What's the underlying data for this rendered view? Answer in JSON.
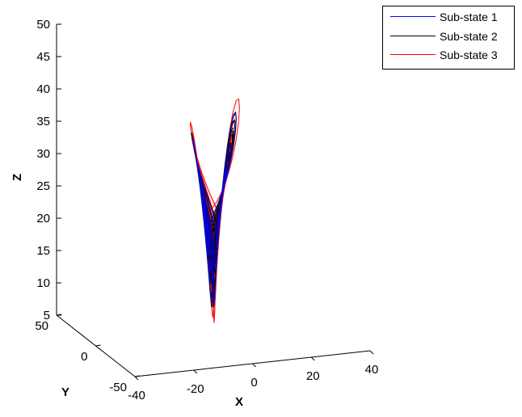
{
  "chart_data": {
    "type": "line",
    "projection": "3d",
    "title": "",
    "xlabel": "X",
    "ylabel": "Y",
    "zlabel": "Z",
    "xlim": [
      -40,
      40
    ],
    "ylim": [
      -50,
      50
    ],
    "zlim": [
      5,
      50
    ],
    "xticks": [
      "-40",
      "-20",
      "0",
      "20",
      "40"
    ],
    "yticks": [
      "-50",
      "0",
      "50"
    ],
    "zticks": [
      "5",
      "10",
      "15",
      "20",
      "25",
      "30",
      "35",
      "40",
      "45",
      "50"
    ],
    "grid": false,
    "legend_position": "top-right",
    "series": [
      {
        "name": "Sub-state 1",
        "color": "#0000ff"
      },
      {
        "name": "Sub-state 2",
        "color": "#000000"
      },
      {
        "name": "Sub-state 3",
        "color": "#ff0000"
      }
    ]
  }
}
